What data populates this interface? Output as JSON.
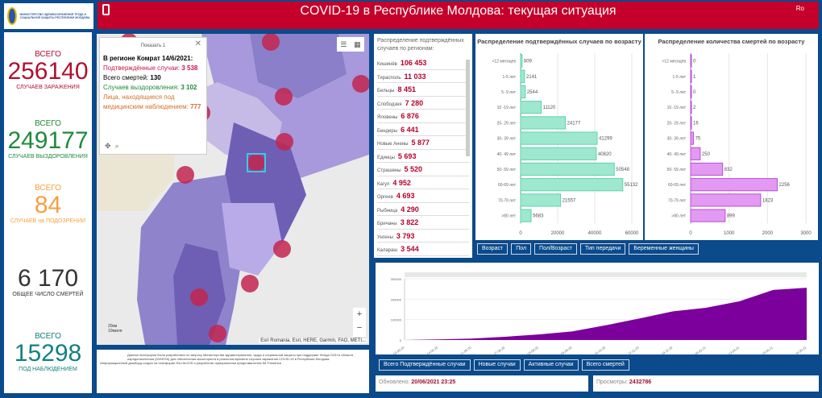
{
  "header": {
    "title": "COVID-19 в Республике Молдова: текущая ситуация",
    "lang": "Ro",
    "ministry": "МИНИСТЕРСТВО ЗДРАВООХРАНЕНИЯ ТРУДА И СОЦИАЛЬНОЙ ЗАЩИТЫ РЕСПУБЛИКИ МОЛДОВА"
  },
  "stats": [
    {
      "pre": "ВСЕГО",
      "num": "256140",
      "post": "СЛУЧАЕВ ЗАРАЖЕНИЯ",
      "color": "#b0102f"
    },
    {
      "pre": "ВСЕГО",
      "num": "249177",
      "post": "СЛУЧАЕВ ВЫЗДОРОВЛЕНИЯ",
      "color": "#1f8a3c"
    },
    {
      "pre": "ВСЕГО",
      "num": "84",
      "post": "СЛУЧАЕВ на ПОДОЗРЕНИИ",
      "color": "#f5a040"
    },
    {
      "pre": "",
      "num": "6 170",
      "post": "ОБЩЕЕ ЧИСЛО СМЕРТЕЙ",
      "color": "#333333"
    },
    {
      "pre": "ВСЕГО",
      "num": "15298",
      "post": "ПОД НАБЛЮДЕНИЕМ",
      "color": "#138080"
    }
  ],
  "popup": {
    "header": "Показать 1",
    "title": "В регионе Комрат 14/6/2021:",
    "confirmed_label": "Подтверждённые случаи:",
    "confirmed": "3 538",
    "deaths_label": "Всего смертей:",
    "deaths": "130",
    "recovered_label": "Случаев выздоровления:",
    "recovered": "3 102",
    "observed_label": "Лица, находящиеся под медицинским наблюдением:",
    "observed": "777"
  },
  "map": {
    "labels": [
      "HINCESTI",
      "Hincesti",
      "IALOVENI",
      "CIMISLIA",
      "Cimislia",
      "LEOVA",
      "Iargara",
      "BASARABEASCA",
      "Basarabeasca",
      "Comrat",
      "CANTEMIR",
      "U.T.A. GAGAUZIA",
      "Ceadir-Lunga",
      "Taraclia",
      "Cahul",
      "CAHUL",
      "Vulcanesti",
      "GALATI"
    ],
    "attribution": "Esri Romania, Esri, HERE, Garmin, FAO, METI...",
    "scale_top": "20км",
    "scale_bottom": "10миля",
    "zoom_in": "+",
    "zoom_out": "−"
  },
  "footer": {
    "line1": "Данная платформа была разработана по запросу Министерства здравоохранения, труда и социальной защиты при поддержке Фонда ООН в области народонаселения (ЮНФПА) для обеспечения мониторинга в реальном времени случаев заражения COVID-19 в Республике Молдова.",
    "line2": "Информационный дашборд создан на платформе Esri ArcGIS и разработан официальным представителем IM Trimetrica ."
  },
  "regions": {
    "title": "Распределение подтверждённых случаев по регионам:",
    "items": [
      {
        "name": "Кишинёв",
        "value": "106 453"
      },
      {
        "name": "Тирасполь",
        "value": "11 033"
      },
      {
        "name": "Бельцы",
        "value": "8 451"
      },
      {
        "name": "Слободзея",
        "value": "7 280"
      },
      {
        "name": "Яловены",
        "value": "6 876"
      },
      {
        "name": "Бендеры",
        "value": "6 441"
      },
      {
        "name": "Новые Анены",
        "value": "5 877"
      },
      {
        "name": "Единцы",
        "value": "5 693"
      },
      {
        "name": "Страшены",
        "value": "5 520"
      },
      {
        "name": "Кагул",
        "value": "4 952"
      },
      {
        "name": "Оргеев",
        "value": "4 693"
      },
      {
        "name": "Рыбница",
        "value": "4 290"
      },
      {
        "name": "Бричаны",
        "value": "3 822"
      },
      {
        "name": "Унгены",
        "value": "3 793"
      },
      {
        "name": "Калараш",
        "value": "3 544"
      },
      {
        "name": "Комрат",
        "value": "3 538"
      }
    ]
  },
  "age_tabs": [
    "Возраст",
    "Пол",
    "Пол/Возраст",
    "Тип передачи",
    "Беременные женщины"
  ],
  "timeline_tabs": [
    "Всего Подтверждённые случаи",
    "Новые случаи",
    "Активные случаи",
    "Всего смертей"
  ],
  "updated": {
    "label": "Обновлено:",
    "value": "20/06/2021 23:25"
  },
  "views": {
    "label": "Просмотры:",
    "value": "2432786"
  },
  "chart_data": [
    {
      "type": "bar",
      "title": "Распределение подтверждённых случаев по возрасту",
      "categories": [
        "<12 месяцев",
        "1-5 лет",
        "5- 9 лет",
        "10 -19 лет",
        "20- 29 лет",
        "30- 39 лет",
        "40- 49 лет",
        "50- 59 лет",
        "60-69 лет",
        "70-79 лет",
        ">80 лет"
      ],
      "values": [
        809,
        2141,
        2544,
        11120,
        24177,
        41299,
        40820,
        50548,
        55132,
        21557,
        5683
      ],
      "xlim": [
        0,
        60000
      ],
      "ticks": [
        0,
        20000,
        40000,
        60000
      ],
      "color": "#9ee8cf"
    },
    {
      "type": "bar",
      "title": "Распределение количества смертей по возрасту",
      "categories": [
        "<12 месяцев",
        "1-5 лет",
        "5- 9 лет",
        "10 -19 лет",
        "20- 29 лет",
        "30- 39 лет",
        "40- 49 лет",
        "50- 59 лет",
        "60-69 лет",
        "70-79 лет",
        ">80 лет"
      ],
      "values": [
        0,
        1,
        0,
        2,
        16,
        75,
        250,
        832,
        2256,
        1823,
        899
      ],
      "xlim": [
        0,
        3000
      ],
      "ticks": [
        0,
        1000,
        2000,
        3000
      ],
      "color": "#e39af2"
    },
    {
      "type": "area",
      "title": "Всего Подтверждённые случаи",
      "x": [
        "03.03.20",
        "14.04.20",
        "21.05.20",
        "27.06.20",
        "03.08.20",
        "09.09.20",
        "16.10.20",
        "22.11.20",
        "29.12.20",
        "04.02.21",
        "13.03.21",
        "19.04.21",
        "26.05.21"
      ],
      "values": [
        0,
        3000,
        7000,
        16000,
        27000,
        42000,
        72000,
        105000,
        140000,
        158000,
        190000,
        245000,
        256000
      ],
      "ylim": [
        0,
        300000
      ],
      "yticks": [
        0,
        100000,
        200000,
        300000
      ],
      "color": "#7b009c"
    }
  ]
}
